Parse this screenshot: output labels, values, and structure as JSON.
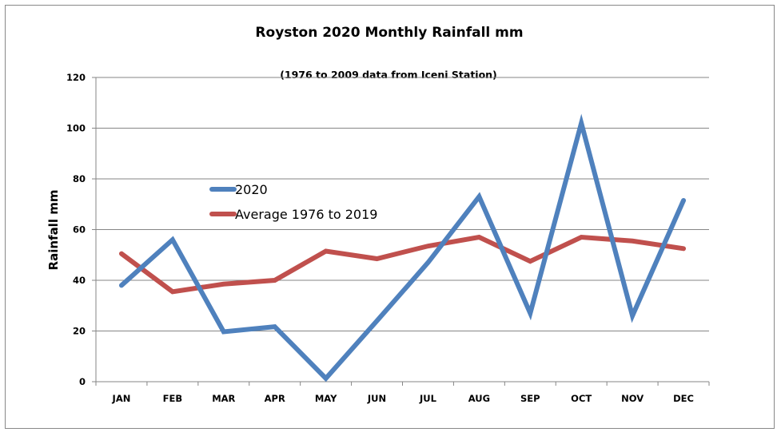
{
  "chart_data": {
    "type": "line",
    "title": "Royston 2020 Monthly Rainfall  mm",
    "subtitle": "(1976 to 2009 data from Iceni Station)",
    "xlabel": "",
    "ylabel": "Rainfall mm",
    "ylim": [
      0,
      120
    ],
    "yticks": [
      0,
      20,
      40,
      60,
      80,
      100,
      120
    ],
    "grid": true,
    "legend_position": "center-left",
    "categories": [
      "JAN",
      "FEB",
      "MAR",
      "APR",
      "MAY",
      "JUN",
      "JUL",
      "AUG",
      "SEP",
      "OCT",
      "NOV",
      "DEC"
    ],
    "series": [
      {
        "name": "2020",
        "color": "#4F81BD",
        "values": [
          38,
          56,
          19.7,
          21.7,
          1.3,
          24,
          47,
          73,
          27,
          102,
          26,
          71.5
        ]
      },
      {
        "name": "Average 1976 to 2019",
        "color": "#C0504D",
        "values": [
          50.5,
          35.5,
          38.5,
          40,
          51.5,
          48.5,
          53.5,
          57,
          47.5,
          57,
          55.5,
          52.5
        ]
      }
    ]
  }
}
